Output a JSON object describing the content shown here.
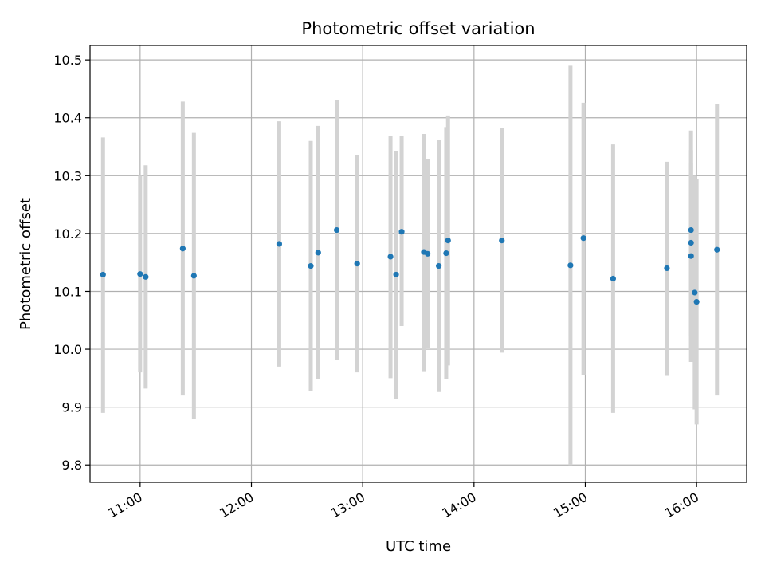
{
  "chart_data": {
    "type": "scatter",
    "title": "Photometric offset variation",
    "xlabel": "UTC time",
    "ylabel": "Photometric offset",
    "x_axis": {
      "kind": "time",
      "date": "",
      "min": "10:33",
      "max": "16:27"
    },
    "xticks": [
      "11:00",
      "12:00",
      "13:00",
      "14:00",
      "15:00",
      "16:00"
    ],
    "ylim": [
      9.77,
      10.525
    ],
    "yticks": [
      "9.8",
      "9.9",
      "10.0",
      "10.1",
      "10.2",
      "10.3",
      "10.4",
      "10.5"
    ],
    "grid": true,
    "colors": {
      "marker": "#1f77b4",
      "errorbar": "#d3d3d3",
      "grid": "#b0b0b0",
      "axis": "#000000"
    },
    "points": [
      {
        "t": "10:40",
        "y": 10.129,
        "lo": 9.89,
        "hi": 10.366
      },
      {
        "t": "11:00",
        "y": 10.13,
        "lo": 9.96,
        "hi": 10.3
      },
      {
        "t": "11:03",
        "y": 10.125,
        "lo": 9.932,
        "hi": 10.318
      },
      {
        "t": "11:23",
        "y": 10.174,
        "lo": 9.92,
        "hi": 10.428
      },
      {
        "t": "11:29",
        "y": 10.127,
        "lo": 9.88,
        "hi": 10.374
      },
      {
        "t": "12:15",
        "y": 10.182,
        "lo": 9.97,
        "hi": 10.394
      },
      {
        "t": "12:32",
        "y": 10.144,
        "lo": 9.928,
        "hi": 10.36
      },
      {
        "t": "12:36",
        "y": 10.167,
        "lo": 9.948,
        "hi": 10.386
      },
      {
        "t": "12:46",
        "y": 10.206,
        "lo": 9.982,
        "hi": 10.43
      },
      {
        "t": "12:57",
        "y": 10.148,
        "lo": 9.96,
        "hi": 10.336
      },
      {
        "t": "13:15",
        "y": 10.16,
        "lo": 9.95,
        "hi": 10.368
      },
      {
        "t": "13:18",
        "y": 10.129,
        "lo": 9.914,
        "hi": 10.342
      },
      {
        "t": "13:21",
        "y": 10.203,
        "lo": 10.04,
        "hi": 10.368
      },
      {
        "t": "13:33",
        "y": 10.168,
        "lo": 9.962,
        "hi": 10.372
      },
      {
        "t": "13:35",
        "y": 10.165,
        "lo": 10.002,
        "hi": 10.328
      },
      {
        "t": "13:41",
        "y": 10.144,
        "lo": 9.926,
        "hi": 10.362
      },
      {
        "t": "13:45",
        "y": 10.166,
        "lo": 9.948,
        "hi": 10.384
      },
      {
        "t": "13:46",
        "y": 10.188,
        "lo": 9.972,
        "hi": 10.404
      },
      {
        "t": "14:15",
        "y": 10.188,
        "lo": 9.994,
        "hi": 10.382
      },
      {
        "t": "14:52",
        "y": 10.145,
        "lo": 9.8,
        "hi": 10.49
      },
      {
        "t": "14:59",
        "y": 10.192,
        "lo": 9.956,
        "hi": 10.426
      },
      {
        "t": "15:15",
        "y": 10.122,
        "lo": 9.89,
        "hi": 10.354
      },
      {
        "t": "15:44",
        "y": 10.14,
        "lo": 9.954,
        "hi": 10.324
      },
      {
        "t": "15:57",
        "y": 10.206,
        "lo": 9.978,
        "hi": 10.378
      },
      {
        "t": "15:57",
        "y": 10.184,
        "lo": 10.024,
        "hi": 10.344
      },
      {
        "t": "15:57",
        "y": 10.161,
        "lo": 10.0,
        "hi": 10.322
      },
      {
        "t": "15:59",
        "y": 10.098,
        "lo": 9.896,
        "hi": 10.3
      },
      {
        "t": "16:00",
        "y": 10.082,
        "lo": 9.87,
        "hi": 10.294
      },
      {
        "t": "16:11",
        "y": 10.172,
        "lo": 9.92,
        "hi": 10.424
      }
    ]
  }
}
